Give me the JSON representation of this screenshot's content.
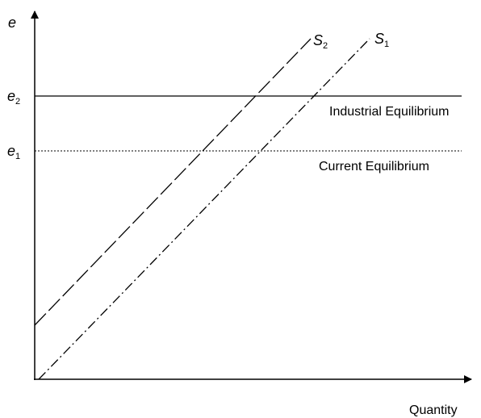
{
  "axes": {
    "y_label": "e",
    "x_label": "Quantity"
  },
  "levels": [
    {
      "symbol": "e",
      "subscript": "2",
      "label": "Industrial Equilibrium"
    },
    {
      "symbol": "e",
      "subscript": "1",
      "label": "Current Equilibrium"
    }
  ],
  "curves": [
    {
      "symbol": "S",
      "subscript": "2"
    },
    {
      "symbol": "S",
      "subscript": "1"
    }
  ]
}
